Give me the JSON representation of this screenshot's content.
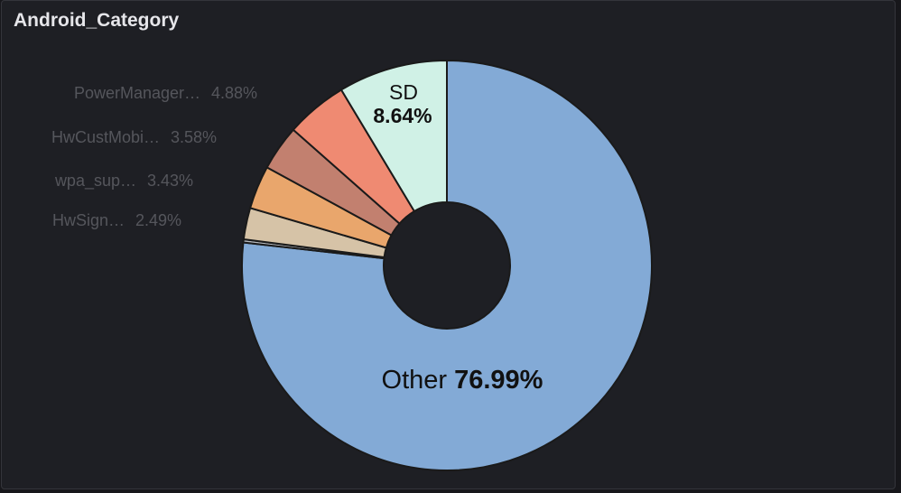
{
  "panel": {
    "title": "Android_Category"
  },
  "chart_data": {
    "type": "pie",
    "donut": true,
    "title": "Android_Category",
    "slices": [
      {
        "name": "Other",
        "display_name": "Other",
        "value": 76.99,
        "label": "76.99%",
        "color": "#83aad6"
      },
      {
        "name": "",
        "display_name": "",
        "value": 0.25,
        "label": "",
        "color": "#b5b9bf"
      },
      {
        "name": "HwSign",
        "display_name": "HwSign…",
        "value": 2.49,
        "label": "2.49%",
        "color": "#d6c3a7"
      },
      {
        "name": "wpa_sup",
        "display_name": "wpa_sup…",
        "value": 3.43,
        "label": "3.43%",
        "color": "#e9a66c"
      },
      {
        "name": "HwCustMobi",
        "display_name": "HwCustMobi…",
        "value": 3.58,
        "label": "3.58%",
        "color": "#c2806f"
      },
      {
        "name": "PowerManager",
        "display_name": "PowerManager…",
        "value": 4.88,
        "label": "4.88%",
        "color": "#ef8a72"
      },
      {
        "name": "SD",
        "display_name": "SD",
        "value": 8.64,
        "label": "8.64%",
        "color": "#d0f1e6"
      }
    ]
  }
}
